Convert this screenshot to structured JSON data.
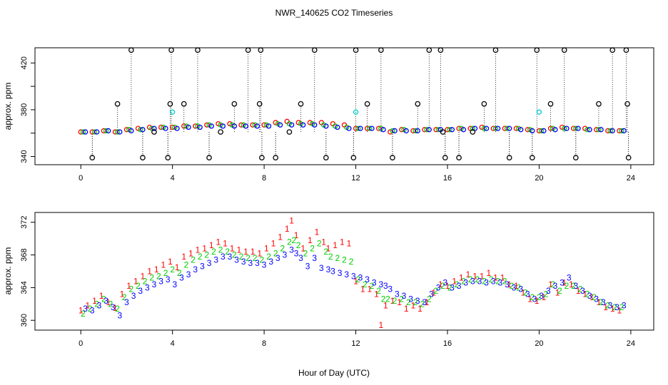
{
  "chart_data": {
    "title": "NWR_140625  CO2 Timeseries",
    "xlabel": "Hour of Day (UTC)",
    "xlim": [
      -2,
      25
    ],
    "xticks": [
      0,
      4,
      8,
      12,
      16,
      20,
      24
    ],
    "series_colors": {
      "1": "#ff0000",
      "2": "#00cc00",
      "3": "#0000ff",
      "flag": "#000000",
      "alt": "#00cccc"
    },
    "panels": [
      {
        "type": "scatter",
        "ylabel": "approx. ppm",
        "ylim": [
          333,
          433
        ],
        "yticks": [
          340,
          360,
          380,
          400,
          420
        ],
        "ytick_labels": [
          "340",
          "",
          "380",
          "",
          "420"
        ],
        "markers": "circles",
        "series": [
          {
            "name": "1",
            "x": [
              0,
              0.5,
              1,
              1.5,
              2,
              2.5,
              3,
              3.5,
              4,
              4.5,
              5,
              5.5,
              6,
              6.5,
              7,
              7.5,
              8,
              8.5,
              9,
              9.5,
              10,
              10.5,
              11,
              11.5,
              12,
              12.5,
              13,
              13.5,
              14,
              14.5,
              15,
              15.5,
              16,
              16.5,
              17,
              17.5,
              18,
              18.5,
              19,
              19.5,
              20,
              20.5,
              21,
              21.5,
              22,
              22.5,
              23,
              23.5
            ],
            "y": [
              361,
              361,
              362,
              361,
              363,
              364,
              365,
              365,
              365,
              366,
              366,
              367,
              368,
              368,
              367,
              367,
              367,
              369,
              370,
              369,
              369,
              369,
              368,
              367,
              364,
              364,
              364,
              361,
              363,
              362,
              363,
              363,
              363,
              364,
              364,
              365,
              364,
              364,
              364,
              363,
              362,
              364,
              365,
              364,
              364,
              363,
              362,
              362
            ]
          },
          {
            "name": "2",
            "x": [
              0.1,
              0.6,
              1.1,
              1.6,
              2.1,
              2.6,
              3.1,
              3.6,
              4.1,
              4.6,
              5.1,
              5.6,
              6.1,
              6.6,
              7.1,
              7.6,
              8.1,
              8.6,
              9.1,
              9.6,
              10.1,
              10.6,
              11.1,
              11.6,
              12.1,
              12.6,
              13.1,
              13.6,
              14.1,
              14.6,
              15.1,
              15.6,
              16.1,
              16.6,
              17.1,
              17.6,
              18.1,
              18.6,
              19.1,
              19.6,
              20.1,
              20.6,
              21.1,
              21.6,
              22.1,
              22.6,
              23.1,
              23.6
            ],
            "y": [
              361,
              361,
              362,
              361,
              363,
              363,
              364,
              365,
              365,
              366,
              366,
              367,
              367,
              367,
              367,
              367,
              367,
              368,
              368,
              368,
              368,
              367,
              366,
              365,
              364,
              364,
              364,
              362,
              363,
              362,
              363,
              363,
              363,
              364,
              364,
              364,
              364,
              364,
              364,
              363,
              362,
              364,
              364,
              364,
              363,
              363,
              362,
              362
            ]
          },
          {
            "name": "3",
            "x": [
              0.2,
              0.7,
              1.2,
              1.7,
              2.2,
              2.7,
              3.2,
              3.7,
              4.2,
              4.7,
              5.2,
              5.7,
              6.2,
              6.7,
              7.2,
              7.7,
              8.2,
              8.7,
              9.2,
              9.7,
              10.2,
              10.7,
              11.2,
              11.7,
              12.2,
              12.7,
              13.2,
              13.7,
              14.2,
              14.7,
              15.2,
              15.7,
              16.2,
              16.7,
              17.2,
              17.7,
              18.2,
              18.7,
              19.2,
              19.7,
              20.2,
              20.7,
              21.2,
              21.7,
              22.2,
              22.7,
              23.2,
              23.7
            ],
            "y": [
              361,
              361,
              362,
              361,
              362,
              363,
              364,
              364,
              364,
              365,
              365,
              366,
              366,
              366,
              366,
              366,
              366,
              367,
              367,
              367,
              367,
              366,
              365,
              364,
              364,
              364,
              363,
              362,
              362,
              362,
              363,
              363,
              363,
              363,
              364,
              364,
              364,
              364,
              363,
              362,
              362,
              363,
              364,
              364,
              363,
              363,
              362,
              362
            ]
          },
          {
            "name": "flag",
            "x": [
              0.5,
              1.6,
              2.2,
              2.7,
              3.2,
              3.8,
              3.9,
              3.95,
              4.5,
              5.1,
              5.6,
              6.1,
              6.7,
              7.3,
              7.8,
              7.85,
              7.9,
              8.5,
              9.1,
              9.6,
              10.2,
              10.7,
              11.9,
              12.0,
              12.5,
              13.1,
              13.6,
              14.7,
              15.2,
              15.7,
              15.8,
              15.9,
              16.5,
              17.1,
              17.6,
              18.1,
              18.7,
              19.7,
              19.9,
              20.5,
              21.1,
              21.6,
              22.6,
              23.2,
              23.8,
              23.85,
              23.9
            ],
            "y": [
              339,
              385,
              431,
              339,
              361,
              339,
              385,
              431,
              385,
              431,
              339,
              361,
              385,
              431,
              385,
              431,
              339,
              339,
              361,
              385,
              431,
              339,
              339,
              431,
              385,
              431,
              339,
              385,
              431,
              431,
              361,
              339,
              339,
              361,
              385,
              431,
              339,
              339,
              431,
              385,
              431,
              339,
              385,
              431,
              431,
              385,
              339
            ]
          },
          {
            "name": "alt",
            "x": [
              4.0,
              12.0,
              20.0
            ],
            "y": [
              378,
              378,
              378
            ]
          }
        ]
      },
      {
        "type": "scatter",
        "ylabel": "approx. ppm",
        "ylim": [
          358.8,
          373.2
        ],
        "yticks": [
          360,
          364,
          368,
          372
        ],
        "ytick_labels": [
          "360",
          "364",
          "368",
          "372"
        ],
        "markers": "digits",
        "series": [
          {
            "name": "1",
            "x": [
              0,
              0.3,
              0.6,
              0.9,
              1.2,
              1.5,
              1.8,
              2.1,
              2.4,
              2.7,
              3.0,
              3.3,
              3.6,
              3.9,
              4.2,
              4.5,
              4.8,
              5.1,
              5.4,
              5.7,
              6.0,
              6.3,
              6.6,
              6.9,
              7.2,
              7.5,
              7.8,
              8.1,
              8.4,
              8.7,
              9.0,
              9.2,
              9.4,
              9.7,
              10.0,
              10.3,
              10.6,
              10.8,
              11.1,
              11.4,
              11.7,
              12.0,
              12.3,
              12.6,
              12.9,
              13.1,
              13.3,
              13.6,
              13.9,
              14.2,
              14.5,
              14.8,
              15.1,
              15.4,
              15.7,
              16.0,
              16.3,
              16.6,
              16.9,
              17.2,
              17.5,
              17.8,
              18.1,
              18.4,
              18.7,
              19.0,
              19.3,
              19.6,
              19.9,
              20.2,
              20.5,
              20.8,
              21.1,
              21.4,
              21.7,
              22.0,
              22.3,
              22.6,
              22.9,
              23.2,
              23.5
            ],
            "y": [
              361.2,
              361.8,
              362.4,
              363,
              362.2,
              361.5,
              363.2,
              364.2,
              364.8,
              365.4,
              366,
              366.2,
              366.8,
              367.2,
              366.5,
              367.8,
              368.2,
              368.6,
              368.8,
              369.2,
              369.6,
              369.4,
              368.8,
              368.6,
              368.4,
              368.4,
              368.2,
              368.8,
              369.4,
              370.2,
              371.2,
              372.2,
              370.4,
              368.8,
              369.8,
              370.8,
              369.6,
              368.8,
              369.2,
              369.6,
              369.4,
              364.8,
              363.8,
              363.8,
              363.2,
              359.4,
              361.8,
              362.4,
              362.2,
              361.4,
              361.8,
              361.4,
              362.2,
              363.4,
              364.4,
              364.2,
              364.8,
              365.2,
              365.6,
              365.4,
              365.4,
              365.8,
              365.2,
              365.2,
              364.4,
              364.2,
              363.4,
              362.6,
              362.4,
              362.8,
              364.4,
              363.4,
              364.6,
              364.4,
              363.6,
              363.2,
              362.8,
              362.2,
              361.6,
              361.4,
              361.2
            ]
          },
          {
            "name": "2",
            "x": [
              0.1,
              0.4,
              0.7,
              1.0,
              1.3,
              1.6,
              1.9,
              2.2,
              2.5,
              2.8,
              3.1,
              3.4,
              3.7,
              4.0,
              4.3,
              4.6,
              4.9,
              5.2,
              5.5,
              5.8,
              6.1,
              6.4,
              6.7,
              7.0,
              7.3,
              7.6,
              7.9,
              8.2,
              8.5,
              8.8,
              9.1,
              9.3,
              9.5,
              9.8,
              10.1,
              10.4,
              10.7,
              10.9,
              11.2,
              11.5,
              11.8,
              12.1,
              12.4,
              12.7,
              13.0,
              13.2,
              13.4,
              13.7,
              14.0,
              14.3,
              14.6,
              14.9,
              15.2,
              15.5,
              15.8,
              16.1,
              16.4,
              16.7,
              17.0,
              17.3,
              17.6,
              17.9,
              18.2,
              18.5,
              18.8,
              19.1,
              19.4,
              19.7,
              20.0,
              20.3,
              20.6,
              20.9,
              21.2,
              21.5,
              21.8,
              22.1,
              22.4,
              22.7,
              23.0,
              23.3,
              23.6
            ],
            "y": [
              360.8,
              361.4,
              362,
              362.6,
              362,
              361.4,
              362.8,
              363.8,
              364.2,
              364.8,
              365.2,
              365.4,
              365.8,
              366.2,
              365.8,
              366.8,
              367.4,
              367.8,
              368,
              368.4,
              368.6,
              368.4,
              368,
              367.8,
              367.6,
              367.6,
              367.4,
              367.8,
              368.2,
              368.8,
              369.6,
              369.8,
              369.2,
              368.2,
              368.8,
              369.4,
              368.4,
              367.8,
              367.6,
              367.4,
              367.2,
              365,
              364.4,
              364.2,
              363.6,
              362.6,
              362.6,
              362.4,
              362.6,
              362.2,
              362.2,
              362.0,
              362.6,
              363.6,
              364.2,
              364.0,
              364.4,
              364.8,
              365.0,
              365.0,
              364.8,
              365.0,
              364.8,
              364.8,
              364.2,
              364.0,
              363.4,
              362.8,
              362.8,
              363.2,
              364.4,
              363.6,
              364.2,
              364.2,
              363.8,
              363.2,
              362.8,
              362.2,
              361.8,
              361.6,
              361.6
            ]
          },
          {
            "name": "3",
            "x": [
              0.2,
              0.5,
              0.8,
              1.1,
              1.4,
              1.7,
              2.0,
              2.3,
              2.6,
              2.9,
              3.2,
              3.5,
              3.8,
              4.1,
              4.4,
              4.7,
              5.0,
              5.3,
              5.6,
              5.9,
              6.2,
              6.5,
              6.8,
              7.1,
              7.4,
              7.7,
              8.0,
              8.3,
              8.6,
              8.9,
              9.2,
              9.4,
              9.6,
              9.9,
              10.2,
              10.5,
              10.8,
              11.0,
              11.3,
              11.6,
              11.9,
              12.2,
              12.5,
              12.8,
              13.1,
              13.3,
              13.5,
              13.8,
              14.1,
              14.4,
              14.7,
              15.0,
              15.3,
              15.6,
              15.9,
              16.2,
              16.5,
              16.8,
              17.1,
              17.4,
              17.7,
              18.0,
              18.3,
              18.6,
              18.9,
              19.2,
              19.5,
              19.8,
              20.1,
              20.4,
              20.7,
              21.0,
              21.3,
              21.6,
              21.9,
              22.2,
              22.5,
              22.8,
              23.1,
              23.4,
              23.7
            ],
            "y": [
              361.4,
              361.2,
              361.8,
              362.4,
              361.6,
              360.6,
              362.2,
              363,
              363.6,
              364,
              364.4,
              364.8,
              365,
              364.4,
              365.2,
              365.6,
              366.2,
              366.6,
              367,
              367.4,
              367.8,
              367.8,
              367.4,
              367.2,
              367,
              367,
              366.8,
              367.2,
              367.6,
              368,
              368.6,
              368.2,
              367.6,
              366.6,
              367.6,
              366.4,
              366.2,
              366,
              365.8,
              365.6,
              365.4,
              365.2,
              365,
              364.6,
              364.4,
              364.2,
              363.8,
              363.2,
              363,
              362.6,
              362.4,
              362.2,
              363.2,
              364,
              364.6,
              364.0,
              364.2,
              364.6,
              364.8,
              364.8,
              364.6,
              364.8,
              364.6,
              364.4,
              364,
              363.8,
              363.2,
              362.6,
              363,
              363.6,
              364.2,
              364.6,
              365.2,
              364.2,
              363.6,
              363,
              362.6,
              362.2,
              361.8,
              361.6,
              361.8
            ]
          }
        ]
      }
    ]
  }
}
